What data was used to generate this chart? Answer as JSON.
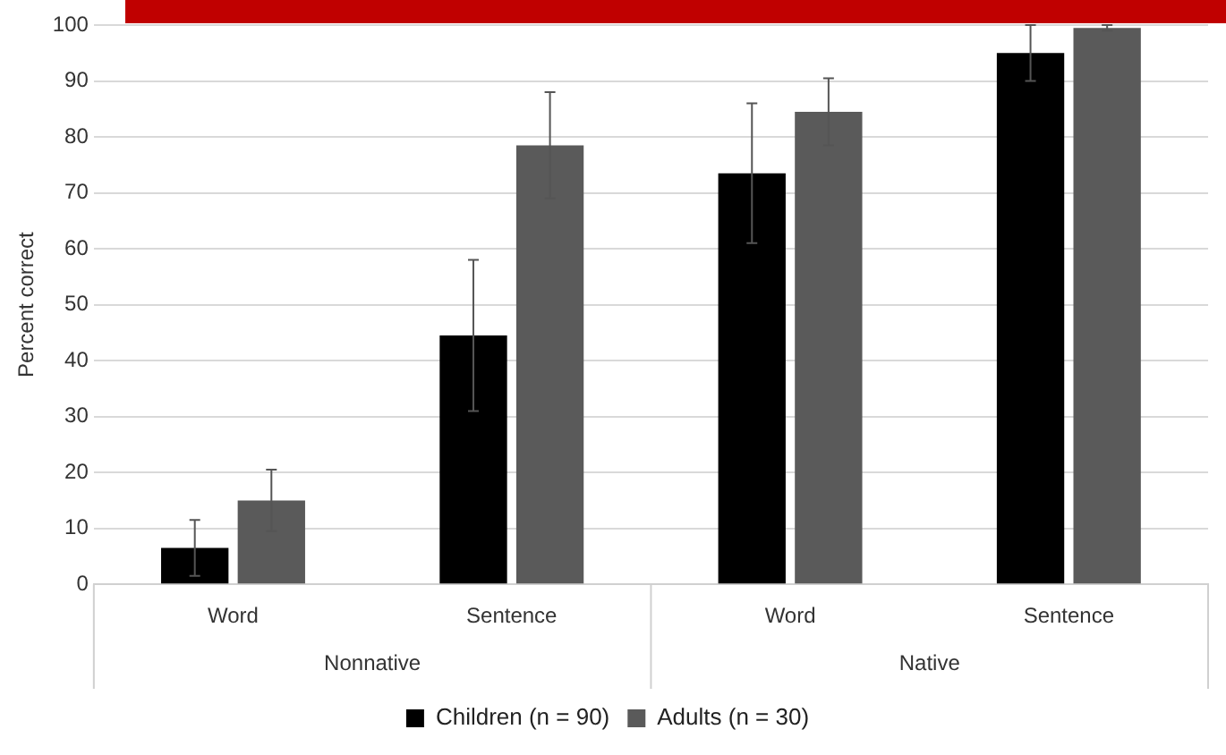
{
  "chart_data": {
    "type": "bar",
    "ylabel": "Percent correct",
    "categories": [
      "Word",
      "Sentence",
      "Word",
      "Sentence"
    ],
    "series": [
      {
        "name": "Children (n = 90)",
        "color": "#000000",
        "values": [
          6.5,
          44.5,
          73.5,
          95
        ],
        "errors": [
          5,
          13.5,
          12.5,
          5
        ]
      },
      {
        "name": "Adults (n = 30)",
        "color": "#5a5a5a",
        "values": [
          15,
          78.5,
          84.5,
          99.5
        ],
        "errors": [
          5.5,
          9.5,
          6,
          0.5
        ]
      }
    ],
    "annotations": [
      "Nonnative",
      "Native"
    ],
    "ylim": [
      0,
      100
    ],
    "yticks": [
      0,
      10,
      20,
      30,
      40,
      50,
      60,
      70,
      80,
      90,
      100
    ],
    "grid": "y",
    "legend": "bottom"
  }
}
